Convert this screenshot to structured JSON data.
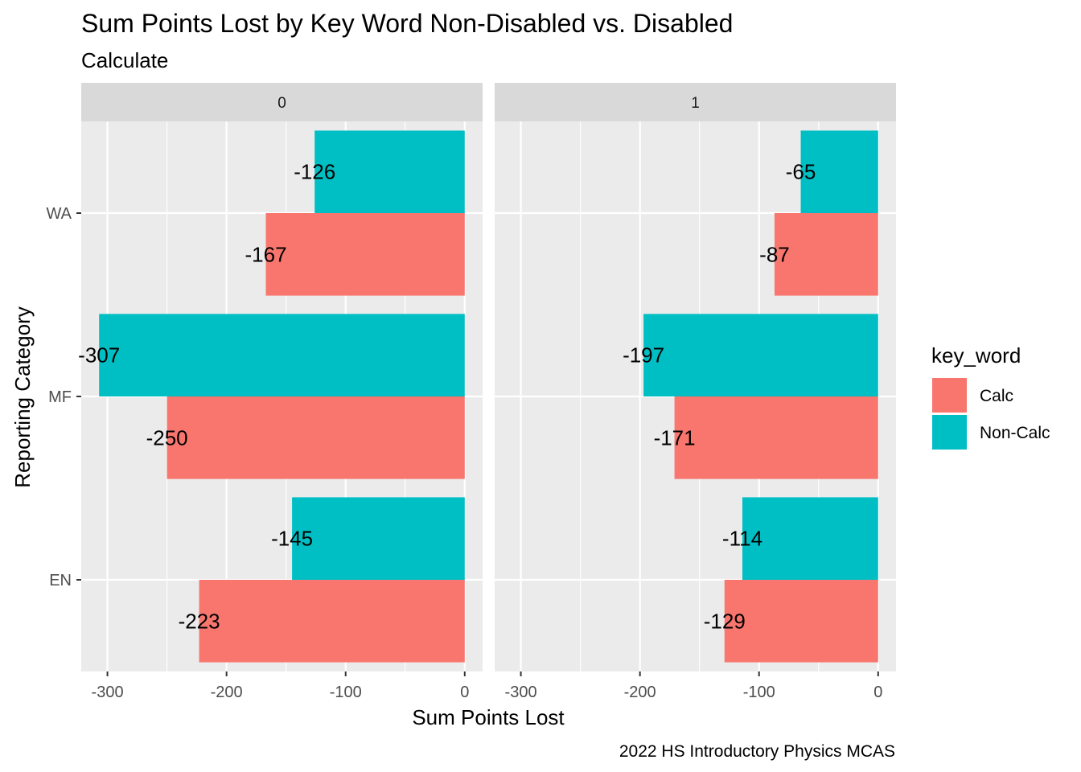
{
  "chart_data": {
    "type": "bar",
    "orientation": "horizontal",
    "title": "Sum Points Lost by Key Word Non-Disabled vs. Disabled",
    "subtitle": "Calculate",
    "xlabel": "Sum Points Lost",
    "ylabel": "Reporting Category",
    "caption": "2022 HS Introductory Physics MCAS",
    "categories": [
      "WA",
      "MF",
      "EN"
    ],
    "x_ticks": [
      -300,
      -200,
      -100,
      0
    ],
    "xlim": [
      -322,
      15
    ],
    "grid": true,
    "legend": {
      "title": "key_word",
      "position": "right",
      "entries": [
        {
          "label": "Calc",
          "color": "#F8766D"
        },
        {
          "label": "Non-Calc",
          "color": "#00BFC4"
        }
      ]
    },
    "facets": [
      {
        "label": "0",
        "series": [
          {
            "name": "Calc",
            "color": "#F8766D",
            "values": [
              -167,
              -250,
              -223
            ]
          },
          {
            "name": "Non-Calc",
            "color": "#00BFC4",
            "values": [
              -126,
              -307,
              -145
            ]
          }
        ]
      },
      {
        "label": "1",
        "series": [
          {
            "name": "Calc",
            "color": "#F8766D",
            "values": [
              -87,
              -171,
              -129
            ]
          },
          {
            "name": "Non-Calc",
            "color": "#00BFC4",
            "values": [
              -65,
              -197,
              -114
            ]
          }
        ]
      }
    ]
  }
}
